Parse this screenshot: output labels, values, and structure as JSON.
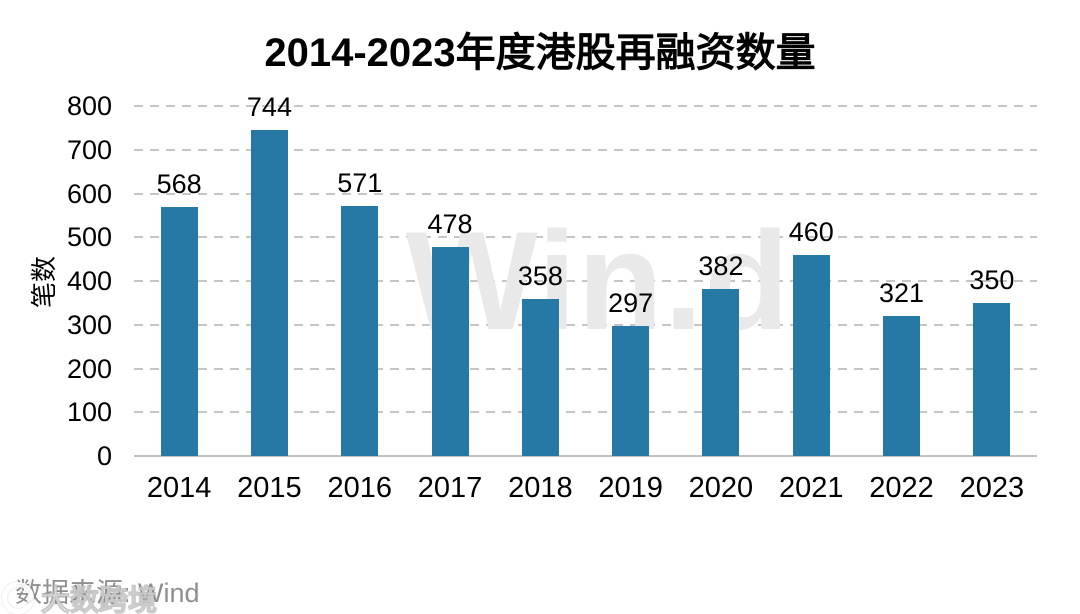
{
  "title": "2014-2023年度港股再融资数量",
  "chart_data": {
    "type": "bar",
    "title": "2014-2023年度港股再融资数量",
    "categories": [
      "2014",
      "2015",
      "2016",
      "2017",
      "2018",
      "2019",
      "2020",
      "2021",
      "2022",
      "2023"
    ],
    "values": [
      568,
      744,
      571,
      478,
      358,
      297,
      382,
      460,
      321,
      350
    ],
    "xlabel": "",
    "ylabel": "笔数",
    "ylim": [
      0,
      800
    ],
    "ytick_interval": 100,
    "yticks": [
      0,
      100,
      200,
      300,
      400,
      500,
      600,
      700,
      800
    ],
    "grid": "horizontal-dashed",
    "legend": "none",
    "bar_color": "#2779A5",
    "value_labels_shown": true
  },
  "watermarks": {
    "center_text": "Win.d",
    "corner_text": "大数跨境",
    "corner_icon": "ring-logo-icon"
  },
  "footer": {
    "source_text": "数据来源: Wind"
  },
  "colors": {
    "bar": "#2779A5",
    "gridline": "#c6c6c6",
    "axis_line": "#c2c2c2",
    "source_text": "#8f8f8f",
    "center_watermark": "#e9e9e9",
    "background": "#ffffff",
    "text": "#000000"
  }
}
